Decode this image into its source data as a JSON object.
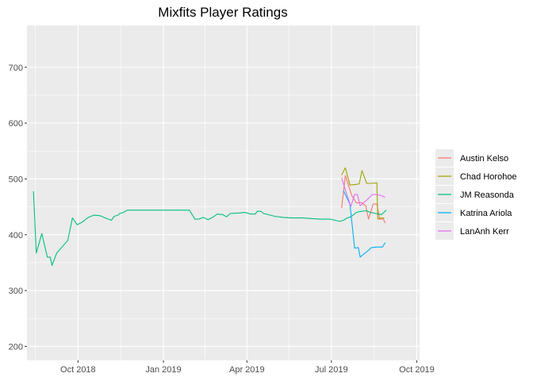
{
  "chart_data": {
    "type": "line",
    "title": "Mixfits Player Ratings",
    "xlabel": "",
    "ylabel": "",
    "x_axis": {
      "type": "date",
      "range": [
        "2018-08-07",
        "2019-10-04"
      ],
      "ticks": [
        {
          "date": "2018-10-01",
          "label": "Oct 2018"
        },
        {
          "date": "2019-01-01",
          "label": "Jan 2019"
        },
        {
          "date": "2019-04-01",
          "label": "Apr 2019"
        },
        {
          "date": "2019-07-01",
          "label": "Jul 2019"
        },
        {
          "date": "2019-10-01",
          "label": "Oct 2019"
        }
      ]
    },
    "y_axis": {
      "range": [
        175,
        775
      ],
      "ticks": [
        200,
        300,
        400,
        500,
        600,
        700
      ]
    },
    "grid": true,
    "legend": "right",
    "series": [
      {
        "name": "Austin Kelso",
        "color": "#F8766D",
        "points": [
          [
            "2019-07-12",
            448
          ],
          [
            "2019-07-16",
            506
          ],
          [
            "2019-07-23",
            470
          ],
          [
            "2019-07-28",
            457
          ],
          [
            "2019-08-02",
            458
          ],
          [
            "2019-08-07",
            452
          ],
          [
            "2019-08-10",
            428
          ],
          [
            "2019-08-15",
            455
          ],
          [
            "2019-08-19",
            455
          ],
          [
            "2019-08-22",
            428
          ],
          [
            "2019-08-26",
            428
          ],
          [
            "2019-08-28",
            421
          ]
        ]
      },
      {
        "name": "Chad Horohoe",
        "color": "#A3A500",
        "points": [
          [
            "2019-07-12",
            507
          ],
          [
            "2019-07-16",
            520
          ],
          [
            "2019-07-21",
            489
          ],
          [
            "2019-07-27",
            490
          ],
          [
            "2019-07-31",
            491
          ],
          [
            "2019-08-03",
            515
          ],
          [
            "2019-08-08",
            492
          ],
          [
            "2019-08-14",
            492
          ],
          [
            "2019-08-19",
            493
          ],
          [
            "2019-08-20",
            428
          ],
          [
            "2019-08-23",
            430
          ],
          [
            "2019-08-27",
            430
          ]
        ]
      },
      {
        "name": "JM Reasonda",
        "color": "#00BF7D",
        "points": [
          [
            "2018-08-14",
            478
          ],
          [
            "2018-08-17",
            367
          ],
          [
            "2018-08-23",
            402
          ],
          [
            "2018-08-29",
            360
          ],
          [
            "2018-09-01",
            360
          ],
          [
            "2018-09-03",
            345
          ],
          [
            "2018-09-08",
            367
          ],
          [
            "2018-09-20",
            390
          ],
          [
            "2018-09-25",
            430
          ],
          [
            "2018-09-30",
            418
          ],
          [
            "2018-10-05",
            422
          ],
          [
            "2018-10-12",
            431
          ],
          [
            "2018-10-18",
            435
          ],
          [
            "2018-10-25",
            434
          ],
          [
            "2018-11-01",
            429
          ],
          [
            "2018-11-06",
            426
          ],
          [
            "2018-11-09",
            433
          ],
          [
            "2018-11-13",
            435
          ],
          [
            "2018-11-15",
            438
          ],
          [
            "2018-11-19",
            440
          ],
          [
            "2018-11-23",
            444
          ],
          [
            "2018-12-01",
            444
          ],
          [
            "2018-12-15",
            444
          ],
          [
            "2019-01-01",
            444
          ],
          [
            "2019-01-20",
            444
          ],
          [
            "2019-01-29",
            444
          ],
          [
            "2019-02-04",
            428
          ],
          [
            "2019-02-08",
            428
          ],
          [
            "2019-02-13",
            431
          ],
          [
            "2019-02-18",
            427
          ],
          [
            "2019-02-23",
            431
          ],
          [
            "2019-02-28",
            437
          ],
          [
            "2019-03-06",
            436
          ],
          [
            "2019-03-10",
            432
          ],
          [
            "2019-03-14",
            438
          ],
          [
            "2019-03-24",
            439
          ],
          [
            "2019-03-30",
            440
          ],
          [
            "2019-04-05",
            437
          ],
          [
            "2019-04-10",
            437
          ],
          [
            "2019-04-12",
            442
          ],
          [
            "2019-04-16",
            442
          ],
          [
            "2019-04-19",
            438
          ],
          [
            "2019-04-24",
            436
          ],
          [
            "2019-05-01",
            433
          ],
          [
            "2019-05-10",
            431
          ],
          [
            "2019-05-20",
            430
          ],
          [
            "2019-06-01",
            430
          ],
          [
            "2019-06-10",
            429
          ],
          [
            "2019-06-20",
            428
          ],
          [
            "2019-06-30",
            428
          ],
          [
            "2019-07-05",
            426
          ],
          [
            "2019-07-10",
            424
          ],
          [
            "2019-07-14",
            426
          ],
          [
            "2019-07-18",
            430
          ],
          [
            "2019-07-22",
            432
          ],
          [
            "2019-07-28",
            440
          ],
          [
            "2019-08-02",
            442
          ],
          [
            "2019-08-08",
            443
          ],
          [
            "2019-08-12",
            440
          ],
          [
            "2019-08-18",
            438
          ],
          [
            "2019-08-24",
            436
          ],
          [
            "2019-08-29",
            444
          ]
        ]
      },
      {
        "name": "Katrina Ariola",
        "color": "#00B0F6",
        "points": [
          [
            "2019-07-14",
            479
          ],
          [
            "2019-07-21",
            455
          ],
          [
            "2019-07-26",
            376
          ],
          [
            "2019-07-30",
            377
          ],
          [
            "2019-08-01",
            360
          ],
          [
            "2019-08-06",
            367
          ],
          [
            "2019-08-10",
            372
          ],
          [
            "2019-08-13",
            377
          ],
          [
            "2019-08-20",
            378
          ],
          [
            "2019-08-25",
            378
          ],
          [
            "2019-08-28",
            386
          ]
        ]
      },
      {
        "name": "LanAnh Kerr",
        "color": "#E76BF3",
        "points": [
          [
            "2019-07-12",
            502
          ],
          [
            "2019-07-18",
            470
          ],
          [
            "2019-07-22",
            451
          ],
          [
            "2019-07-26",
            472
          ],
          [
            "2019-07-29",
            472
          ],
          [
            "2019-08-01",
            452
          ],
          [
            "2019-08-08",
            462
          ],
          [
            "2019-08-14",
            472
          ],
          [
            "2019-08-19",
            472
          ],
          [
            "2019-08-24",
            470
          ],
          [
            "2019-08-28",
            467
          ]
        ]
      }
    ]
  }
}
